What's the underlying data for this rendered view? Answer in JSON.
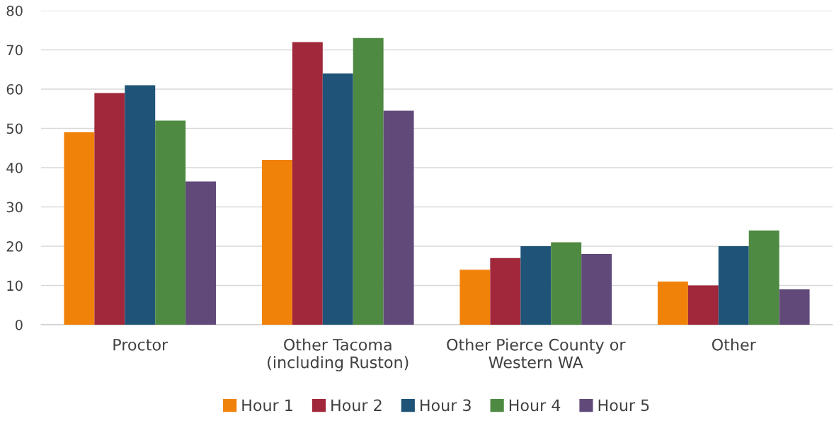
{
  "chart_data": {
    "type": "bar",
    "categories": [
      "Proctor",
      "Other Tacoma\n(including Ruston)",
      "Other Pierce County or\nWestern WA",
      "Other"
    ],
    "series": [
      {
        "name": "Hour 1",
        "color": "#f0820a",
        "values": [
          49,
          42,
          14,
          11
        ]
      },
      {
        "name": "Hour 2",
        "color": "#a0283a",
        "values": [
          59,
          72,
          17,
          10
        ]
      },
      {
        "name": "Hour 3",
        "color": "#1f5478",
        "values": [
          61,
          64,
          20,
          20
        ]
      },
      {
        "name": "Hour 4",
        "color": "#4e8a41",
        "values": [
          52,
          73,
          21,
          24
        ]
      },
      {
        "name": "Hour 5",
        "color": "#614a7a",
        "values": [
          36.5,
          54.5,
          18,
          9
        ]
      }
    ],
    "ylim": [
      0,
      80
    ],
    "yticks": [
      0,
      10,
      20,
      30,
      40,
      50,
      60,
      70,
      80
    ],
    "grid": "y",
    "legend": "bottom"
  }
}
